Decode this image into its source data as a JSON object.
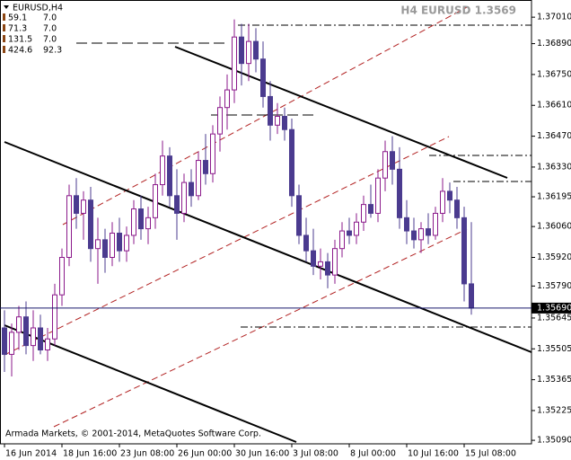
{
  "chart_data": {
    "type": "candlestick",
    "title": "H4 EURUSD 1.3569",
    "symbol": "EURUSD,H4",
    "info_rows": [
      [
        "59.1",
        "7.0"
      ],
      [
        "71.3",
        "7.0"
      ],
      [
        "131.5",
        "7.0"
      ],
      [
        "424.6",
        "92.3"
      ]
    ],
    "copyright": "Armada Markets, © 2001-2014, MetaQuotes Software Corp.",
    "up_color": "#8b1a8b",
    "down_color": "#4b3b8f",
    "categories": [
      "16 Jun 2014",
      null,
      null,
      null,
      null,
      null,
      null,
      null,
      "18 Jun 16:00",
      null,
      null,
      null,
      null,
      null,
      null,
      null,
      "23 Jun 08:00",
      null,
      null,
      null,
      null,
      null,
      null,
      null,
      "26 Jun 00:00",
      null,
      null,
      null,
      null,
      null,
      null,
      null,
      "30 Jun 16:00",
      null,
      null,
      null,
      null,
      null,
      null,
      null,
      "3 Jul 08:00",
      null,
      null,
      null,
      null,
      null,
      null,
      null,
      "8 Jul 00:00",
      null,
      null,
      null,
      null,
      null,
      null,
      null,
      "10 Jul 16:00",
      null,
      null,
      null,
      null,
      null,
      null,
      null,
      "15 Jul 08:00",
      null
    ],
    "open": [
      1.356,
      1.3548,
      1.3558,
      1.3565,
      1.3552,
      1.356,
      1.355,
      1.3555,
      1.3575,
      1.3592,
      1.362,
      1.3612,
      1.3618,
      1.3596,
      1.36,
      1.3592,
      1.3603,
      1.3595,
      1.3602,
      1.3614,
      1.3605,
      1.361,
      1.3625,
      1.3638,
      1.362,
      1.3612,
      1.3626,
      1.362,
      1.3636,
      1.363,
      1.3648,
      1.366,
      1.3668,
      1.3692,
      1.368,
      1.369,
      1.3682,
      1.3665,
      1.3652,
      1.3656,
      1.365,
      1.362,
      1.3602,
      1.3595,
      1.3588,
      1.359,
      1.3584,
      1.3596,
      1.3604,
      1.3602,
      1.3608,
      1.3616,
      1.3612,
      1.3628,
      1.364,
      1.3632,
      1.361,
      1.3604,
      1.36,
      1.3605,
      1.3602,
      1.3612,
      1.3622,
      1.3618,
      1.361,
      1.358
    ],
    "high": [
      1.3568,
      1.3562,
      1.357,
      1.3572,
      1.3568,
      1.3566,
      1.356,
      1.358,
      1.3596,
      1.3625,
      1.3628,
      1.3622,
      1.3624,
      1.361,
      1.3605,
      1.3608,
      1.361,
      1.3606,
      1.3618,
      1.362,
      1.3615,
      1.363,
      1.3645,
      1.3642,
      1.3632,
      1.363,
      1.3632,
      1.364,
      1.3648,
      1.3652,
      1.3665,
      1.3675,
      1.37,
      1.3698,
      1.3698,
      1.3696,
      1.369,
      1.3672,
      1.3662,
      1.366,
      1.3655,
      1.3625,
      1.361,
      1.3605,
      1.3596,
      1.3594,
      1.36,
      1.3608,
      1.361,
      1.3612,
      1.362,
      1.3625,
      1.3632,
      1.3645,
      1.3647,
      1.3642,
      1.3618,
      1.361,
      1.3608,
      1.3612,
      1.3615,
      1.3628,
      1.3626,
      1.3624,
      1.3615,
      1.3608
    ],
    "low": [
      1.354,
      1.3538,
      1.355,
      1.3548,
      1.3545,
      1.3548,
      1.3545,
      1.3552,
      1.357,
      1.3588,
      1.3605,
      1.36,
      1.359,
      1.358,
      1.3585,
      1.3588,
      1.359,
      1.359,
      1.3598,
      1.36,
      1.3598,
      1.3605,
      1.362,
      1.3615,
      1.36,
      1.3608,
      1.3615,
      1.3618,
      1.3625,
      1.3626,
      1.364,
      1.365,
      1.3662,
      1.367,
      1.3672,
      1.3676,
      1.366,
      1.3645,
      1.3648,
      1.3645,
      1.3615,
      1.3598,
      1.359,
      1.3584,
      1.3582,
      1.3578,
      1.358,
      1.3592,
      1.3598,
      1.3598,
      1.3604,
      1.361,
      1.3608,
      1.3622,
      1.3625,
      1.3605,
      1.3598,
      1.3596,
      1.3594,
      1.3598,
      1.36,
      1.3608,
      1.3612,
      1.3605,
      1.3572,
      1.3566
    ],
    "close": [
      1.3548,
      1.3558,
      1.3565,
      1.3552,
      1.356,
      1.355,
      1.3555,
      1.3575,
      1.3592,
      1.362,
      1.3612,
      1.3618,
      1.3596,
      1.36,
      1.3592,
      1.3603,
      1.3595,
      1.3602,
      1.3614,
      1.3605,
      1.361,
      1.3625,
      1.3638,
      1.362,
      1.3612,
      1.3626,
      1.362,
      1.3636,
      1.363,
      1.3648,
      1.366,
      1.3668,
      1.3692,
      1.368,
      1.369,
      1.3682,
      1.3665,
      1.3652,
      1.3656,
      1.365,
      1.362,
      1.3602,
      1.3595,
      1.3588,
      1.359,
      1.3584,
      1.3596,
      1.3604,
      1.3602,
      1.3608,
      1.3616,
      1.3612,
      1.3628,
      1.364,
      1.3632,
      1.361,
      1.3604,
      1.36,
      1.3605,
      1.3602,
      1.3612,
      1.3622,
      1.3618,
      1.361,
      1.358,
      1.3569
    ],
    "last_price": {
      "value": 1.3569,
      "label": "1.35690"
    },
    "ylim": [
      1.35074,
      1.37088
    ],
    "yticks": [
      {
        "value": 1.3701,
        "label": "1.37010"
      },
      {
        "value": 1.3689,
        "label": "1.36890"
      },
      {
        "value": 1.3675,
        "label": "1.36750"
      },
      {
        "value": 1.3661,
        "label": "1.36610"
      },
      {
        "value": 1.3647,
        "label": "1.36470"
      },
      {
        "value": 1.3633,
        "label": "1.36330"
      },
      {
        "value": 1.36195,
        "label": "1.36195"
      },
      {
        "value": 1.3606,
        "label": "1.36060"
      },
      {
        "value": 1.3592,
        "label": "1.35920"
      },
      {
        "value": 1.3579,
        "label": "1.35790"
      },
      {
        "value": 1.35645,
        "label": "1.35645"
      },
      {
        "value": 1.35505,
        "label": "1.35505"
      },
      {
        "value": 1.35365,
        "label": "1.35365"
      },
      {
        "value": 1.35225,
        "label": "1.35225"
      },
      {
        "value": 1.3509,
        "label": "1.35090"
      }
    ]
  }
}
